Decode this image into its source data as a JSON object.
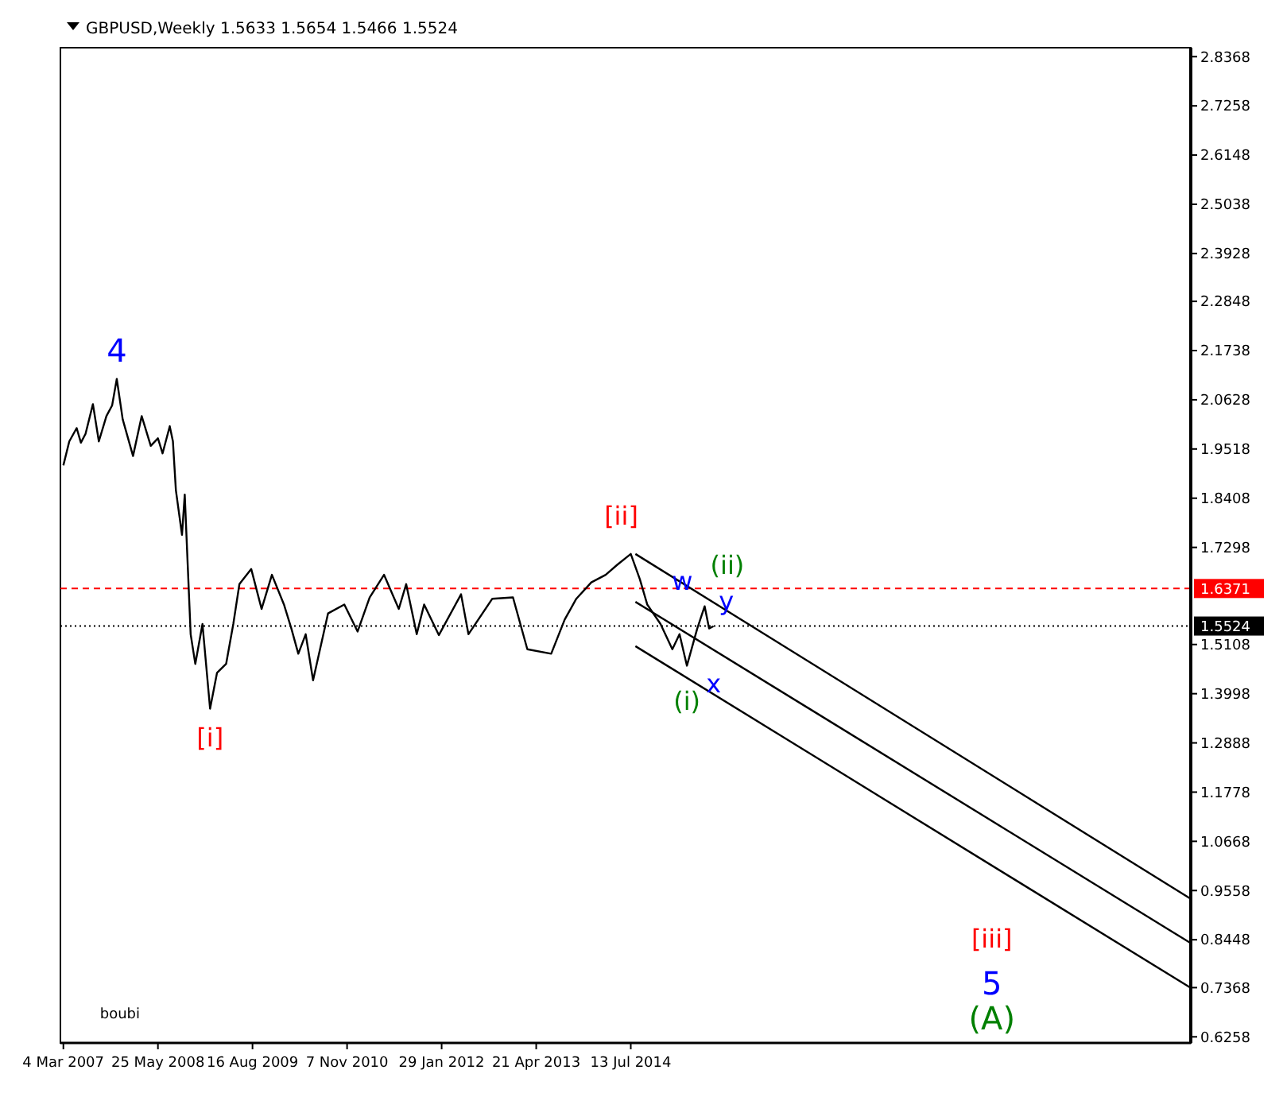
{
  "chart_data": {
    "type": "line",
    "title": "GBPUSD,Weekly  1.5633 1.5654 1.5466 1.5524",
    "xlim": [
      "2007-02-18",
      "2021-10-17"
    ],
    "xticks": [
      {
        "value": "2007-03-04",
        "label": "4 Mar 2007"
      },
      {
        "value": "2008-05-25",
        "label": "25 May 2008"
      },
      {
        "value": "2009-08-16",
        "label": "16 Aug 2009"
      },
      {
        "value": "2010-11-07",
        "label": "7 Nov 2010"
      },
      {
        "value": "2012-01-29",
        "label": "29 Jan 2012"
      },
      {
        "value": "2013-04-21",
        "label": "21 Apr 2013"
      },
      {
        "value": "2014-07-13",
        "label": "13 Jul 2014"
      }
    ],
    "ylim": [
      0.612,
      2.857
    ],
    "yticks": [
      0.6258,
      0.7368,
      0.8448,
      0.9558,
      1.0668,
      1.1778,
      1.2888,
      1.3998,
      1.5108,
      1.7298,
      1.8408,
      1.9518,
      2.0628,
      2.1738,
      2.2848,
      2.3928,
      2.5038,
      2.6148,
      2.7258,
      2.8368
    ],
    "grid": false,
    "series": [
      {
        "color": "#000000",
        "x": [
          "2007-03-04",
          "2007-04-01",
          "2007-05-06",
          "2007-05-26",
          "2007-06-17",
          "2007-07-22",
          "2007-08-19",
          "2007-09-24",
          "2007-10-21",
          "2007-11-12",
          "2007-12-10",
          "2008-01-28",
          "2008-03-09",
          "2008-04-21",
          "2008-05-25",
          "2008-06-16",
          "2008-07-20",
          "2008-08-04",
          "2008-08-18",
          "2008-09-16",
          "2008-09-29",
          "2008-10-13",
          "2008-10-27",
          "2008-11-18",
          "2008-12-22",
          "2009-01-27",
          "2009-03-01",
          "2009-04-13",
          "2009-05-17",
          "2009-06-15",
          "2009-08-10",
          "2009-09-28",
          "2009-11-16",
          "2010-01-12",
          "2010-02-16",
          "2010-03-21",
          "2010-04-25",
          "2010-05-30",
          "2010-08-09",
          "2010-10-25",
          "2010-12-27",
          "2011-02-22",
          "2011-05-01",
          "2011-07-10",
          "2011-08-14",
          "2011-10-03",
          "2011-11-07",
          "2012-01-16",
          "2012-04-30",
          "2012-06-04",
          "2012-09-25",
          "2013-01-01",
          "2013-03-10",
          "2013-07-01",
          "2013-09-03",
          "2013-10-28",
          "2014-01-07",
          "2014-03-16",
          "2014-05-11",
          "2014-07-13",
          "2014-08-25",
          "2014-09-29",
          "2014-12-01",
          "2015-01-26",
          "2015-03-01",
          "2015-04-05",
          "2015-05-24",
          "2015-06-28",
          "2015-07-19",
          "2015-08-09"
        ],
        "values": [
          1.915,
          1.969,
          1.999,
          1.966,
          1.986,
          2.053,
          1.969,
          2.026,
          2.05,
          2.11,
          2.019,
          1.936,
          2.026,
          1.959,
          1.976,
          1.942,
          2.003,
          1.969,
          1.859,
          1.758,
          1.849,
          1.691,
          1.534,
          1.467,
          1.557,
          1.366,
          1.447,
          1.467,
          1.557,
          1.647,
          1.681,
          1.591,
          1.668,
          1.601,
          1.547,
          1.49,
          1.534,
          1.43,
          1.581,
          1.601,
          1.54,
          1.617,
          1.668,
          1.591,
          1.647,
          1.534,
          1.601,
          1.532,
          1.624,
          1.534,
          1.614,
          1.617,
          1.5,
          1.49,
          1.567,
          1.614,
          1.651,
          1.668,
          1.691,
          1.715,
          1.658,
          1.601,
          1.557,
          1.5,
          1.534,
          1.463,
          1.547,
          1.597,
          1.547,
          1.552
        ]
      },
      {
        "color": "#000000",
        "x": [
          "2014-08-04",
          "2021-10-17"
        ],
        "values": [
          1.715,
          0.937
        ]
      },
      {
        "color": "#000000",
        "x": [
          "2014-08-04",
          "2021-10-17"
        ],
        "values": [
          1.607,
          0.837
        ]
      },
      {
        "color": "#000000",
        "x": [
          "2014-08-04",
          "2021-10-17"
        ],
        "values": [
          1.507,
          0.736
        ]
      }
    ],
    "ref_lines": [
      {
        "axis": "y",
        "value": 1.6371,
        "label": "1.6371",
        "color": "#ff0000",
        "line_style": "dashed"
      },
      {
        "axis": "y",
        "value": 1.5524,
        "label": "1.5524",
        "color": "#000000",
        "line_style": "dotted"
      }
    ],
    "annotations": [
      {
        "text": "4",
        "x": "2007-11-12",
        "y": 2.11
      },
      {
        "text": "[i]",
        "x": "2009-01-27",
        "y": 1.366
      },
      {
        "text": "[ii]",
        "x": "2014-07-13",
        "y": 1.715
      },
      {
        "text": "w",
        "x": "2015-06-28",
        "y": 1.597
      },
      {
        "text": "y",
        "x": "2015-08-09",
        "y": 1.552
      },
      {
        "text": "x",
        "x": "2015-08-09",
        "y": 1.552
      },
      {
        "text": "(i)",
        "x": "2015-04-05",
        "y": 1.463
      },
      "(ii)",
      "[iii]",
      "5",
      "(A)",
      "boubi"
    ]
  }
}
